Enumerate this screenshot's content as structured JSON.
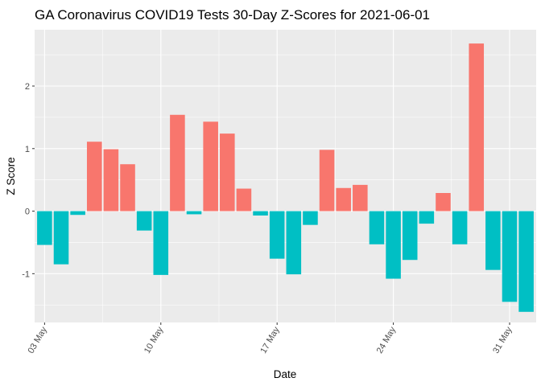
{
  "chart_data": {
    "type": "bar",
    "title": "GA Coronavirus COVID19 Tests 30-Day Z-Scores for 2021-06-01",
    "xlabel": "Date",
    "ylabel": "Z Score",
    "x_tick_labels": [
      "03 May",
      "10 May",
      "17 May",
      "24 May",
      "31 May"
    ],
    "y_tick_labels": [
      "-1",
      "0",
      "1",
      "2"
    ],
    "ylim": [
      -1.78,
      2.9
    ],
    "grid": true,
    "legend": "none",
    "colors": {
      "positive": "#F8766D",
      "negative": "#00BFC4",
      "panel": "#EBEBEB",
      "grid": "#FFFFFF"
    },
    "categories": [
      "2021-05-03",
      "2021-05-04",
      "2021-05-05",
      "2021-05-06",
      "2021-05-07",
      "2021-05-08",
      "2021-05-09",
      "2021-05-10",
      "2021-05-11",
      "2021-05-12",
      "2021-05-13",
      "2021-05-14",
      "2021-05-15",
      "2021-05-16",
      "2021-05-17",
      "2021-05-18",
      "2021-05-19",
      "2021-05-20",
      "2021-05-21",
      "2021-05-22",
      "2021-05-23",
      "2021-05-24",
      "2021-05-25",
      "2021-05-26",
      "2021-05-27",
      "2021-05-28",
      "2021-05-29",
      "2021-05-30",
      "2021-05-31",
      "2021-06-01"
    ],
    "values": [
      -0.54,
      -0.85,
      -0.06,
      1.11,
      0.99,
      0.75,
      -0.31,
      -1.02,
      1.54,
      -0.05,
      1.43,
      1.24,
      0.36,
      -0.07,
      -0.76,
      -1.01,
      -0.22,
      0.98,
      0.37,
      0.42,
      -0.53,
      -1.08,
      -0.78,
      -0.2,
      0.29,
      -0.53,
      2.68,
      -0.94,
      -1.45,
      -1.61
    ]
  }
}
